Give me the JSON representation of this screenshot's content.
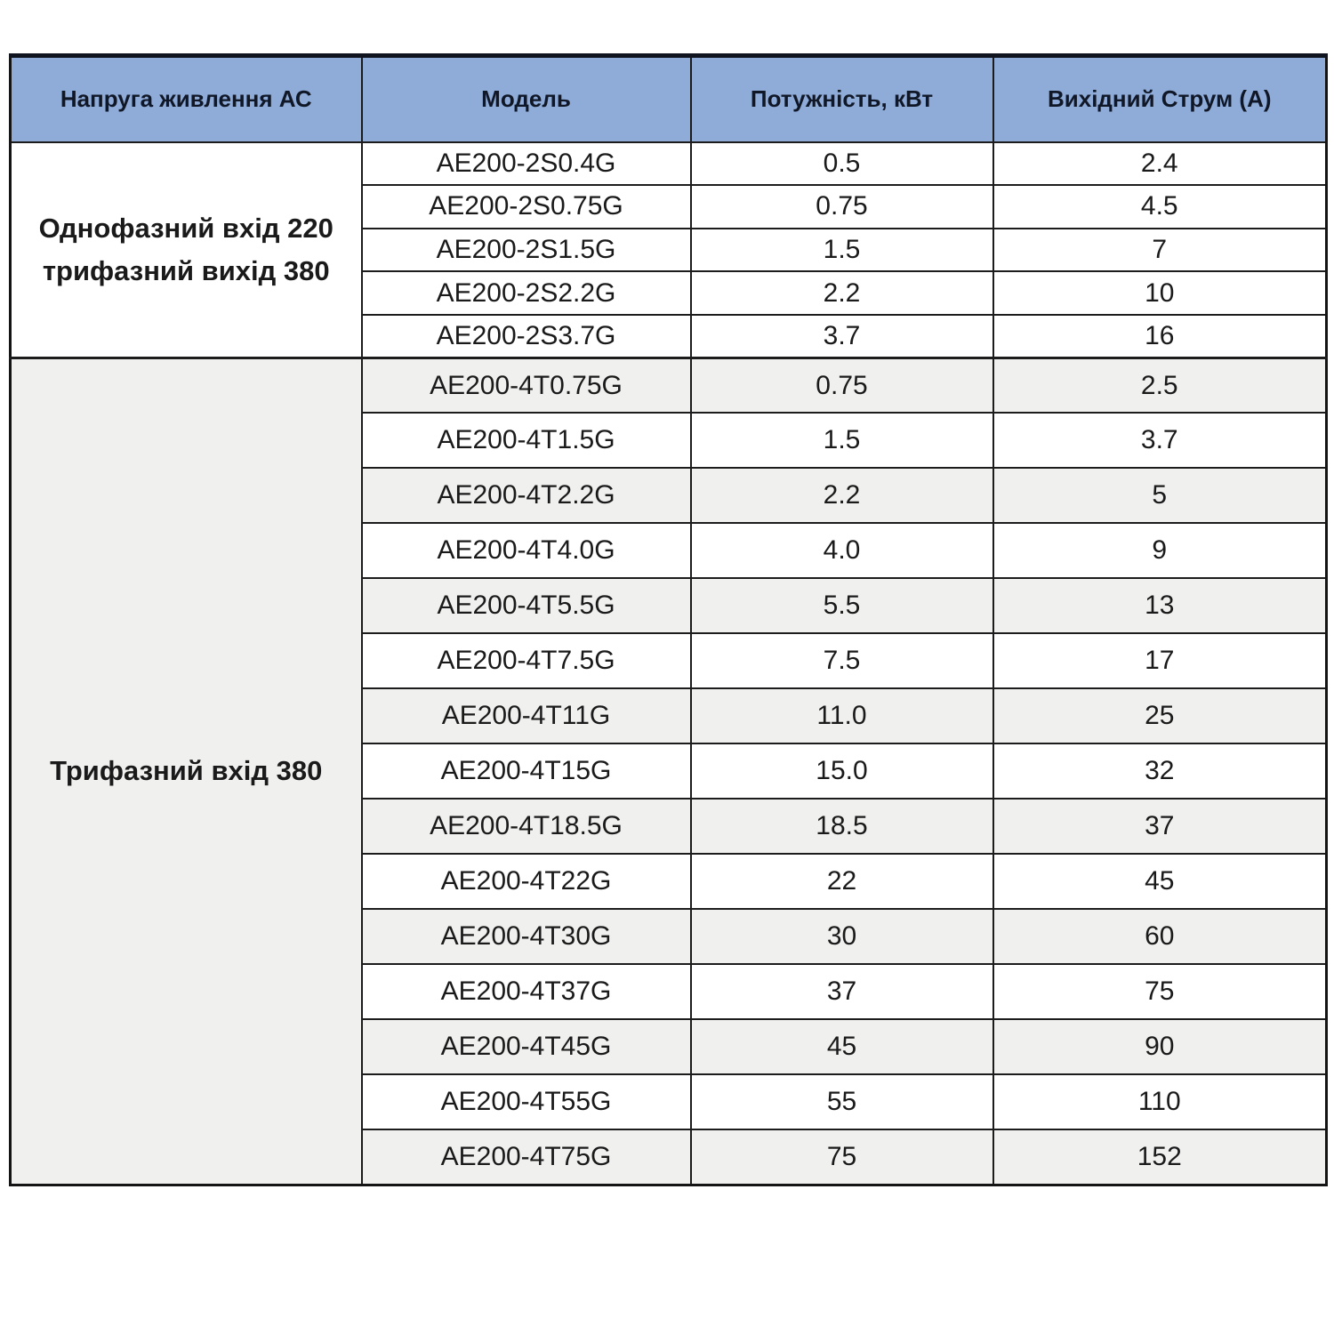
{
  "table": {
    "columns": [
      {
        "label": "Напруга живлення АС"
      },
      {
        "label": "Модель"
      },
      {
        "label": "Потужність, кВт"
      },
      {
        "label": "Вихідний Струм (А)"
      }
    ],
    "groups": [
      {
        "label": "Однофазний вхід 220 трифазний вихід 380",
        "rows": [
          {
            "model": "AE200-2S0.4G",
            "power": "0.5",
            "current": "2.4"
          },
          {
            "model": "AE200-2S0.75G",
            "power": "0.75",
            "current": "4.5"
          },
          {
            "model": "AE200-2S1.5G",
            "power": "1.5",
            "current": "7"
          },
          {
            "model": "AE200-2S2.2G",
            "power": "2.2",
            "current": "10"
          },
          {
            "model": "AE200-2S3.7G",
            "power": "3.7",
            "current": "16"
          }
        ]
      },
      {
        "label": "Трифазний вхід 380",
        "rows": [
          {
            "model": "AE200-4T0.75G",
            "power": "0.75",
            "current": "2.5"
          },
          {
            "model": "AE200-4T1.5G",
            "power": "1.5",
            "current": "3.7"
          },
          {
            "model": "AE200-4T2.2G",
            "power": "2.2",
            "current": "5"
          },
          {
            "model": "AE200-4T4.0G",
            "power": "4.0",
            "current": "9"
          },
          {
            "model": "AE200-4T5.5G",
            "power": "5.5",
            "current": "13"
          },
          {
            "model": "AE200-4T7.5G",
            "power": "7.5",
            "current": "17"
          },
          {
            "model": "AE200-4T11G",
            "power": "11.0",
            "current": "25"
          },
          {
            "model": "AE200-4T15G",
            "power": "15.0",
            "current": "32"
          },
          {
            "model": "AE200-4T18.5G",
            "power": "18.5",
            "current": "37"
          },
          {
            "model": "AE200-4T22G",
            "power": "22",
            "current": "45"
          },
          {
            "model": "AE200-4T30G",
            "power": "30",
            "current": "60"
          },
          {
            "model": "AE200-4T37G",
            "power": "37",
            "current": "75"
          },
          {
            "model": "AE200-4T45G",
            "power": "45",
            "current": "90"
          },
          {
            "model": "AE200-4T55G",
            "power": "55",
            "current": "110"
          },
          {
            "model": "AE200-4T75G",
            "power": "75",
            "current": "152"
          }
        ]
      }
    ]
  },
  "colors": {
    "header_bg": "#8fabd8",
    "header_text": "#101828",
    "stripe_bg": "#f0f0ef",
    "row_bg": "#ffffff",
    "border": "#1c1c1c"
  },
  "chart_data": {
    "type": "table",
    "title": "",
    "columns": [
      "Напруга живлення АС",
      "Модель",
      "Потужність, кВт",
      "Вихідний Струм (А)"
    ],
    "rows": [
      [
        "Однофазний вхід 220 трифазний вихід 380",
        "AE200-2S0.4G",
        0.5,
        2.4
      ],
      [
        "Однофазний вхід 220 трифазний вихід 380",
        "AE200-2S0.75G",
        0.75,
        4.5
      ],
      [
        "Однофазний вхід 220 трифазний вихід 380",
        "AE200-2S1.5G",
        1.5,
        7
      ],
      [
        "Однофазний вхід 220 трифазний вихід 380",
        "AE200-2S2.2G",
        2.2,
        10
      ],
      [
        "Однофазний вхід 220 трифазний вихід 380",
        "AE200-2S3.7G",
        3.7,
        16
      ],
      [
        "Трифазний вхід 380",
        "AE200-4T0.75G",
        0.75,
        2.5
      ],
      [
        "Трифазний вхід 380",
        "AE200-4T1.5G",
        1.5,
        3.7
      ],
      [
        "Трифазний вхід 380",
        "AE200-4T2.2G",
        2.2,
        5
      ],
      [
        "Трифазний вхід 380",
        "AE200-4T4.0G",
        4.0,
        9
      ],
      [
        "Трифазний вхід 380",
        "AE200-4T5.5G",
        5.5,
        13
      ],
      [
        "Трифазний вхід 380",
        "AE200-4T7.5G",
        7.5,
        17
      ],
      [
        "Трифазний вхід 380",
        "AE200-4T11G",
        11.0,
        25
      ],
      [
        "Трифазний вхід 380",
        "AE200-4T15G",
        15.0,
        32
      ],
      [
        "Трифазний вхід 380",
        "AE200-4T18.5G",
        18.5,
        37
      ],
      [
        "Трифазний вхід 380",
        "AE200-4T22G",
        22,
        45
      ],
      [
        "Трифазний вхід 380",
        "AE200-4T30G",
        30,
        60
      ],
      [
        "Трифазний вхід 380",
        "AE200-4T37G",
        37,
        75
      ],
      [
        "Трифазний вхід 380",
        "AE200-4T45G",
        45,
        90
      ],
      [
        "Трифазний вхід 380",
        "AE200-4T55G",
        55,
        110
      ],
      [
        "Трифазний вхід 380",
        "AE200-4T75G",
        75,
        152
      ]
    ]
  }
}
